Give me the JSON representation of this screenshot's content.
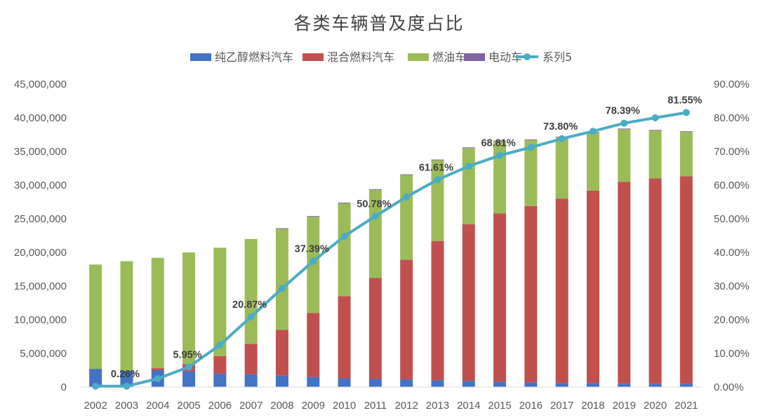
{
  "chart_data": {
    "type": "bar",
    "stacked": true,
    "title": "各类车辆普及度占比",
    "categories": [
      "2002",
      "2003",
      "2004",
      "2005",
      "2006",
      "2007",
      "2008",
      "2009",
      "2010",
      "2011",
      "2012",
      "2013",
      "2014",
      "2015",
      "2016",
      "2017",
      "2018",
      "2019",
      "2020",
      "2021"
    ],
    "series": [
      {
        "name": "纯乙醇燃料汽车",
        "axis": "left",
        "color": "#4472c4",
        "values": [
          2700000,
          2400000,
          2500000,
          2300000,
          2000000,
          1900000,
          1700000,
          1500000,
          1300000,
          1200000,
          1100000,
          1000000,
          900000,
          800000,
          700000,
          600000,
          600000,
          500000,
          500000,
          500000
        ]
      },
      {
        "name": "混合燃料汽车",
        "axis": "left",
        "color": "#c0504d",
        "values": [
          0,
          0,
          300000,
          1100000,
          2600000,
          4500000,
          6800000,
          9500000,
          12200000,
          15000000,
          17800000,
          20700000,
          23300000,
          25000000,
          26200000,
          27400000,
          28600000,
          30000000,
          30500000,
          30800000
        ]
      },
      {
        "name": "燃油车",
        "axis": "left",
        "color": "#9bbb59",
        "values": [
          15500000,
          16300000,
          16400000,
          16600000,
          16100000,
          15600000,
          15000000,
          14300000,
          13800000,
          13100000,
          12600000,
          12000000,
          11300000,
          10700000,
          9800000,
          9100000,
          8600000,
          7800000,
          7100000,
          6600000
        ]
      },
      {
        "name": "电动车",
        "axis": "left",
        "color": "#8064a2",
        "values": [
          0,
          0,
          0,
          0,
          0,
          0,
          100000,
          100000,
          100000,
          100000,
          100000,
          100000,
          100000,
          100000,
          100000,
          100000,
          100000,
          100000,
          100000,
          100000
        ]
      },
      {
        "name": "系列5",
        "axis": "right",
        "type": "line",
        "color": "#4bacc6",
        "values": [
          0.26,
          0.26,
          2.5,
          5.95,
          12.5,
          20.87,
          29.3,
          37.39,
          44.8,
          50.78,
          56.5,
          61.61,
          65.6,
          68.81,
          71.2,
          73.8,
          76.0,
          78.39,
          80.0,
          81.55
        ],
        "labeled_indices": [
          1,
          3,
          5,
          7,
          9,
          11,
          13,
          15,
          17,
          19
        ],
        "labels": [
          "0.26%",
          "5.95%",
          "20.87%",
          "37.39%",
          "50.78%",
          "61.61%",
          "68.81%",
          "73.80%",
          "78.39%",
          "81.55%"
        ]
      }
    ],
    "yaxis_left": {
      "min": 0,
      "max": 45000000,
      "ticks": [
        "0",
        "5,000,000",
        "10,000,000",
        "15,000,000",
        "20,000,000",
        "25,000,000",
        "30,000,000",
        "35,000,000",
        "40,000,000",
        "45,000,000"
      ]
    },
    "yaxis_right": {
      "min": 0,
      "max": 90,
      "ticks": [
        "0.00%",
        "10.00%",
        "20.00%",
        "30.00%",
        "40.00%",
        "50.00%",
        "60.00%",
        "70.00%",
        "80.00%",
        "90.00%"
      ]
    },
    "legend_position": "top",
    "grid": false
  }
}
